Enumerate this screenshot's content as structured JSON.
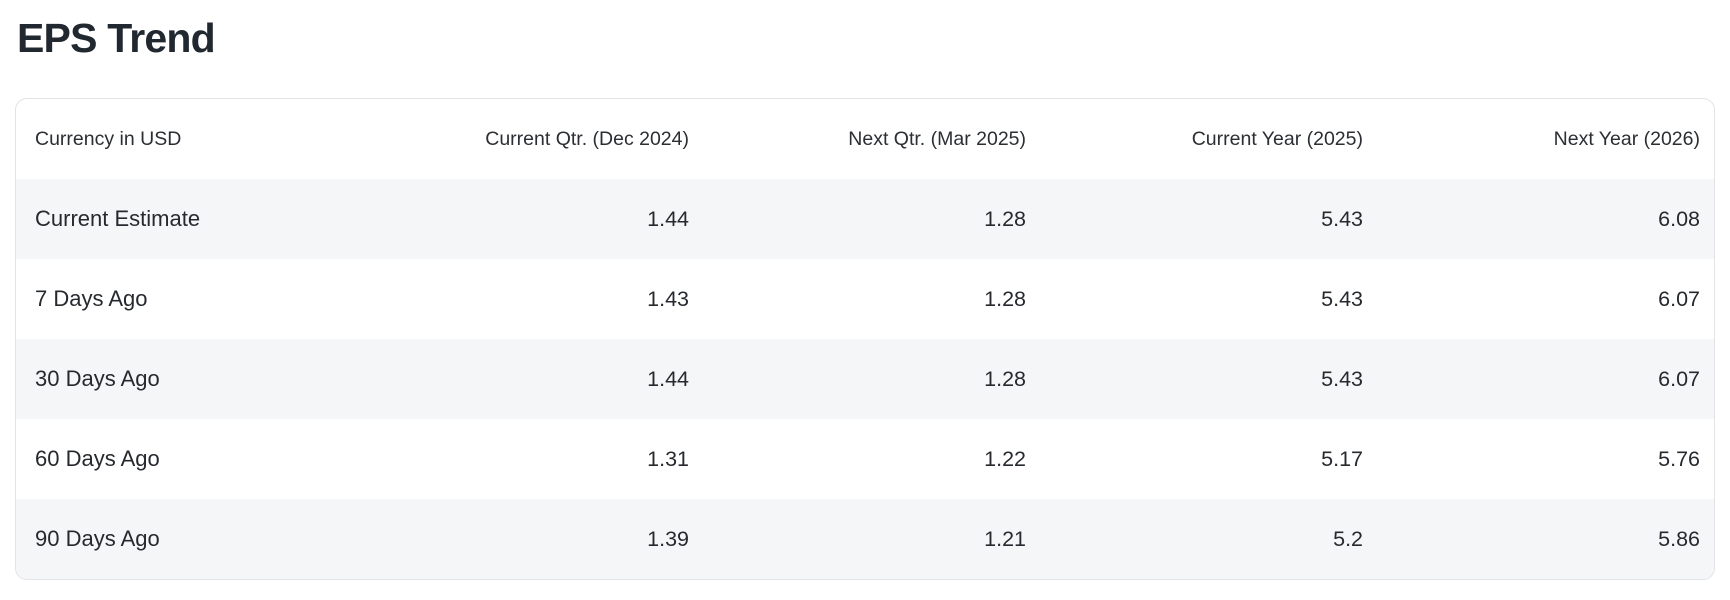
{
  "page": {
    "title": "EPS Trend"
  },
  "table": {
    "columns": [
      "Currency in USD",
      "Current Qtr. (Dec 2024)",
      "Next Qtr. (Mar 2025)",
      "Current Year (2025)",
      "Next Year (2026)"
    ],
    "rows": [
      {
        "label": "Current Estimate",
        "values": [
          "1.44",
          "1.28",
          "5.43",
          "6.08"
        ]
      },
      {
        "label": "7 Days Ago",
        "values": [
          "1.43",
          "1.28",
          "5.43",
          "6.07"
        ]
      },
      {
        "label": "30 Days Ago",
        "values": [
          "1.44",
          "1.28",
          "5.43",
          "6.07"
        ]
      },
      {
        "label": "60 Days Ago",
        "values": [
          "1.31",
          "1.22",
          "5.17",
          "5.76"
        ]
      },
      {
        "label": "90 Days Ago",
        "values": [
          "1.39",
          "1.21",
          "5.2",
          "5.86"
        ]
      }
    ]
  },
  "colors": {
    "text": "#26292e",
    "title": "#222830",
    "stripe": "#f5f6f7",
    "border": "#e1e3e6",
    "card-bg": "#ffffff"
  }
}
